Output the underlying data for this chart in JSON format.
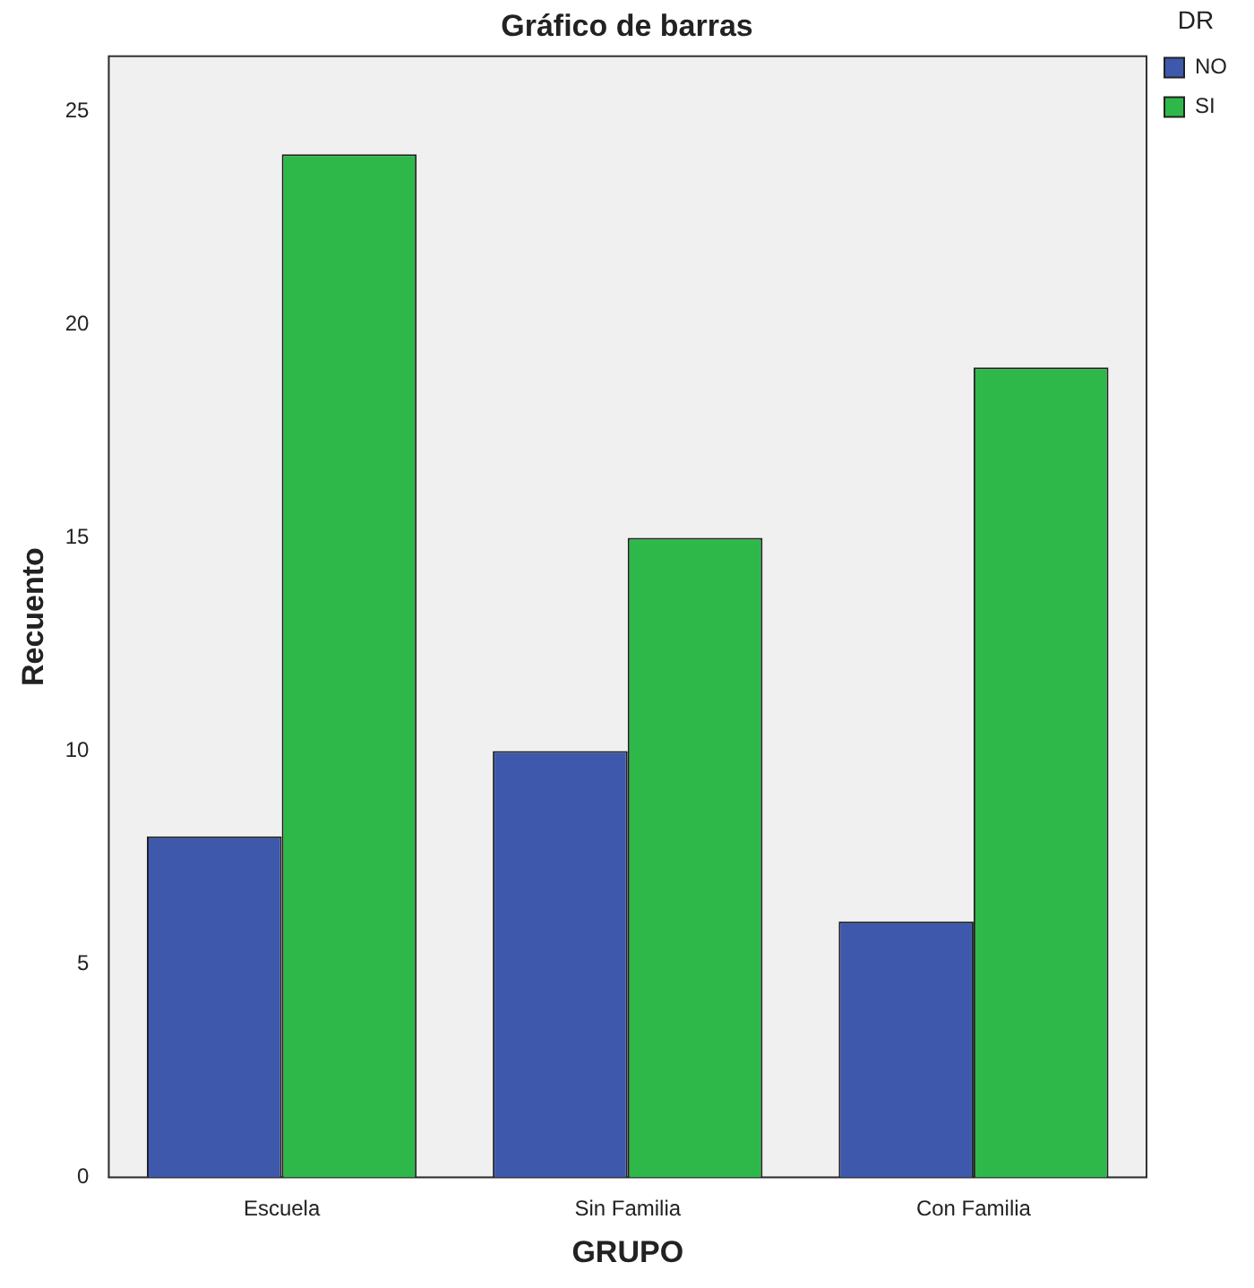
{
  "chart_data": {
    "type": "bar",
    "title": "Gráfico de barras",
    "xlabel": "GRUPO",
    "ylabel": "Recuento",
    "legend_title": "DR",
    "categories": [
      "Escuela",
      "Sin Familia",
      "Con Familia"
    ],
    "series": [
      {
        "name": "NO",
        "color": "#3e58ac",
        "values": [
          8,
          10,
          6
        ]
      },
      {
        "name": "SI",
        "color": "#2fb84a",
        "values": [
          24,
          15,
          19
        ]
      }
    ],
    "ylim": [
      0,
      26.3
    ],
    "yticks": [
      0,
      5,
      10,
      15,
      20,
      25
    ],
    "grid": false,
    "legend": "top right"
  }
}
